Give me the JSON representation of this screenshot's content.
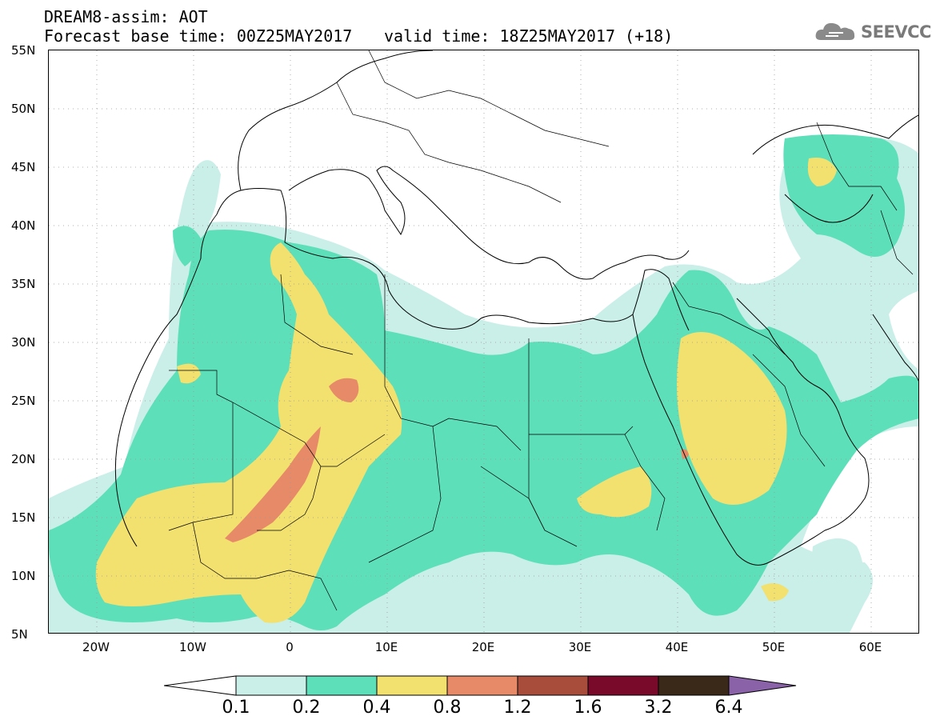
{
  "header": {
    "line1": "DREAM8-assim: AOT",
    "line2": "Forecast base time: 00Z25MAY2017",
    "line3": "valid time: 18Z25MAY2017 (+18)"
  },
  "logo": {
    "text": "SEEVCCC",
    "icon": "cloud-icon",
    "color": "#7a7a7a"
  },
  "map": {
    "region": "North Africa, Europe, Middle East",
    "lon_range": [
      -25,
      65
    ],
    "lat_range": [
      5,
      55
    ],
    "lat_labels": [
      "55N",
      "50N",
      "45N",
      "40N",
      "35N",
      "30N",
      "25N",
      "20N",
      "15N",
      "10N",
      "5N"
    ],
    "lon_labels": [
      "20W",
      "10W",
      "0",
      "10E",
      "20E",
      "30E",
      "40E",
      "50E",
      "60E"
    ],
    "gridlines": "dotted"
  },
  "colorbar": {
    "thresholds": [
      "0.1",
      "0.2",
      "0.4",
      "0.8",
      "1.2",
      "1.6",
      "3.2",
      "6.4"
    ],
    "colors": [
      "#c9efe8",
      "#5ddfba",
      "#f2e06f",
      "#e68a68",
      "#a84c3c",
      "#7a0a2a",
      "#3a2818"
    ],
    "under_color": "#ffffff",
    "over_color": "#8a62a8"
  }
}
